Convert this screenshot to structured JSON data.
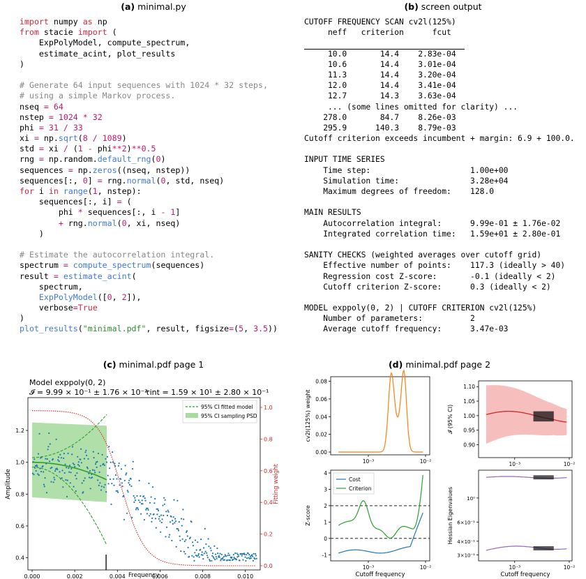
{
  "panel_a": {
    "label": "(a)",
    "title": "minimal.py"
  },
  "panel_b": {
    "label": "(b)",
    "title": "screen output"
  },
  "panel_c": {
    "label": "(c)",
    "title": "minimal.pdf page 1"
  },
  "panel_d": {
    "label": "(d)",
    "title": "minimal.pdf page 2"
  },
  "code_lines": [
    [
      [
        "kw",
        "import"
      ],
      [
        "t",
        " numpy "
      ],
      [
        "kw",
        "as"
      ],
      [
        "t",
        " np"
      ]
    ],
    [
      [
        "kw",
        "from"
      ],
      [
        "t",
        " stacie "
      ],
      [
        "kw",
        "import"
      ],
      [
        "t",
        " ("
      ]
    ],
    [
      [
        "t",
        "    ExpPolyModel, compute_spectrum,"
      ]
    ],
    [
      [
        "t",
        "    estimate_acint, plot_results"
      ]
    ],
    [
      [
        "t",
        ")"
      ]
    ],
    [
      [
        "t",
        ""
      ]
    ],
    [
      [
        "cm",
        "# Generate 64 input sequences with 1024 * 32 steps,"
      ]
    ],
    [
      [
        "cm",
        "# using a simple Markov process."
      ]
    ],
    [
      [
        "t",
        "nseq "
      ],
      [
        "op",
        "="
      ],
      [
        "t",
        " "
      ],
      [
        "num",
        "64"
      ]
    ],
    [
      [
        "t",
        "nstep "
      ],
      [
        "op",
        "="
      ],
      [
        "t",
        " "
      ],
      [
        "num",
        "1024"
      ],
      [
        "t",
        " "
      ],
      [
        "op",
        "*"
      ],
      [
        "t",
        " "
      ],
      [
        "num",
        "32"
      ]
    ],
    [
      [
        "t",
        "phi "
      ],
      [
        "op",
        "="
      ],
      [
        "t",
        " "
      ],
      [
        "num",
        "31"
      ],
      [
        "t",
        " "
      ],
      [
        "op",
        "/"
      ],
      [
        "t",
        " "
      ],
      [
        "num",
        "33"
      ]
    ],
    [
      [
        "t",
        "xi "
      ],
      [
        "op",
        "="
      ],
      [
        "t",
        " np."
      ],
      [
        "fn",
        "sqrt"
      ],
      [
        "t",
        "("
      ],
      [
        "num",
        "8"
      ],
      [
        "t",
        " "
      ],
      [
        "op",
        "/"
      ],
      [
        "t",
        " "
      ],
      [
        "num",
        "1089"
      ],
      [
        "t",
        ")"
      ]
    ],
    [
      [
        "t",
        "std "
      ],
      [
        "op",
        "="
      ],
      [
        "t",
        " xi "
      ],
      [
        "op",
        "/"
      ],
      [
        "t",
        " ("
      ],
      [
        "num",
        "1"
      ],
      [
        "t",
        " "
      ],
      [
        "op",
        "-"
      ],
      [
        "t",
        " phi"
      ],
      [
        "op",
        "**"
      ],
      [
        "num",
        "2"
      ],
      [
        "t",
        ")"
      ],
      [
        "op",
        "**"
      ],
      [
        "num",
        "0.5"
      ]
    ],
    [
      [
        "t",
        "rng "
      ],
      [
        "op",
        "="
      ],
      [
        "t",
        " np.random."
      ],
      [
        "fn",
        "default_rng"
      ],
      [
        "t",
        "("
      ],
      [
        "num",
        "0"
      ],
      [
        "t",
        ")"
      ]
    ],
    [
      [
        "t",
        "sequences "
      ],
      [
        "op",
        "="
      ],
      [
        "t",
        " np."
      ],
      [
        "fn",
        "zeros"
      ],
      [
        "t",
        "((nseq, nstep))"
      ]
    ],
    [
      [
        "t",
        "sequences[:, "
      ],
      [
        "num",
        "0"
      ],
      [
        "t",
        "] "
      ],
      [
        "op",
        "="
      ],
      [
        "t",
        " rng."
      ],
      [
        "fn",
        "normal"
      ],
      [
        "t",
        "("
      ],
      [
        "num",
        "0"
      ],
      [
        "t",
        ", std, nseq)"
      ]
    ],
    [
      [
        "kw",
        "for"
      ],
      [
        "t",
        " i "
      ],
      [
        "kw",
        "in"
      ],
      [
        "t",
        " "
      ],
      [
        "fn",
        "range"
      ],
      [
        "t",
        "("
      ],
      [
        "num",
        "1"
      ],
      [
        "t",
        ", nstep):"
      ]
    ],
    [
      [
        "t",
        "    sequences[:, i] "
      ],
      [
        "op",
        "="
      ],
      [
        "t",
        " ("
      ]
    ],
    [
      [
        "t",
        "        phi "
      ],
      [
        "op",
        "*"
      ],
      [
        "t",
        " sequences[:, i "
      ],
      [
        "op",
        "-"
      ],
      [
        "t",
        " "
      ],
      [
        "num",
        "1"
      ],
      [
        "t",
        "]"
      ]
    ],
    [
      [
        "t",
        "        "
      ],
      [
        "op",
        "+"
      ],
      [
        "t",
        " rng."
      ],
      [
        "fn",
        "normal"
      ],
      [
        "t",
        "("
      ],
      [
        "num",
        "0"
      ],
      [
        "t",
        ", xi, nseq)"
      ]
    ],
    [
      [
        "t",
        "    )"
      ]
    ],
    [
      [
        "t",
        ""
      ]
    ],
    [
      [
        "cm",
        "# Estimate the autocorrelation integral."
      ]
    ],
    [
      [
        "t",
        "spectrum "
      ],
      [
        "op",
        "="
      ],
      [
        "t",
        " "
      ],
      [
        "fn",
        "compute_spectrum"
      ],
      [
        "t",
        "(sequences)"
      ]
    ],
    [
      [
        "t",
        "result "
      ],
      [
        "op",
        "="
      ],
      [
        "t",
        " "
      ],
      [
        "fn",
        "estimate_acint"
      ],
      [
        "t",
        "("
      ]
    ],
    [
      [
        "t",
        "    spectrum,"
      ]
    ],
    [
      [
        "t",
        "    "
      ],
      [
        "fn",
        "ExpPolyModel"
      ],
      [
        "t",
        "(["
      ],
      [
        "num",
        "0"
      ],
      [
        "t",
        ", "
      ],
      [
        "num",
        "2"
      ],
      [
        "t",
        "]),"
      ]
    ],
    [
      [
        "t",
        "    verbose"
      ],
      [
        "op",
        "="
      ],
      [
        "kw",
        "True"
      ]
    ],
    [
      [
        "t",
        ")"
      ]
    ],
    [
      [
        "fn",
        "plot_results"
      ],
      [
        "t",
        "("
      ],
      [
        "str",
        "\"minimal.pdf\""
      ],
      [
        "t",
        ", result, figsize"
      ],
      [
        "op",
        "="
      ],
      [
        "t",
        "("
      ],
      [
        "num",
        "5"
      ],
      [
        "t",
        ", "
      ],
      [
        "num",
        "3.5"
      ],
      [
        "t",
        "))"
      ]
    ]
  ],
  "output_lines": [
    "CUTOFF FREQUENCY SCAN cv2l(125%)",
    "     neff   criterion      fcut",
    "---------  ----------  ----------",
    "     10.0       14.4    2.83e-04",
    "     10.6       14.4    3.01e-04",
    "     11.3       14.4    3.20e-04",
    "     12.0       14.4    3.41e-04",
    "     12.7       14.3    3.63e-04",
    "     ... (some lines omitted for clarity) ...",
    "    278.0       84.7    8.26e-03",
    "    295.9      140.3    8.79e-03",
    "Cutoff criterion exceeds incumbent + margin: 6.9 + 100.0.",
    "",
    "INPUT TIME SERIES",
    "    Time step:                     1.00e+00",
    "    Simulation time:               3.28e+04",
    "    Maximum degrees of freedom:    128.0",
    "",
    "MAIN RESULTS",
    "    Autocorrelation integral:      9.99e-01 ± 1.76e-02",
    "    Integrated correlation time:   1.59e+01 ± 2.80e-01",
    "",
    "SANITY CHECKS (weighted averages over cutoff grid)",
    "    Effective number of points:    117.3 (ideally > 40)",
    "    Regression cost Z-score:       -0.1 (ideally < 2)",
    "    Cutoff criterion Z-score:      0.3 (ideally < 2)",
    "",
    "MODEL exppoly(0, 2) | CUTOFF CRITERION cv2l(125%)",
    "    Number of parameters:          2",
    "    Average cutoff frequency:      3.47e-03"
  ],
  "fig_c": {
    "model_label": "Model exppoly(0, 2)",
    "acint_label": "𝓘 = 9.99 × 10⁻¹ ± 1.76 × 10⁻²",
    "tau_label": "τint = 1.59 × 10¹ ± 2.80 × 10⁻¹",
    "legend_fit": "95% CI fitted model",
    "legend_psd": "95% CI sampling PSD",
    "xlabel": "Frequency",
    "ylabel": "Amplitude",
    "y2label": "Fitting weight",
    "xticks": [
      "0.000",
      "0.002",
      "0.004",
      "0.006",
      "0.008",
      "0.010"
    ],
    "yticks": [
      "0.4",
      "0.6",
      "0.8",
      "1.0",
      "1.2"
    ],
    "y2ticks": [
      "0.0",
      "0.2",
      "0.4",
      "0.6",
      "0.8",
      "1.0"
    ],
    "colors": {
      "points": "#1f77b4",
      "fit": "#2ca02c",
      "band": "#a9dba0",
      "weight": "#d62728"
    }
  },
  "fig_d": {
    "tl_ylabel": "cv2l(125%) weight",
    "tl_yticks": [
      "0.00",
      "0.02",
      "0.04",
      "0.06",
      "0.08"
    ],
    "tr_ylabel": "𝓘 (95% CI)",
    "tr_yticks": [
      "0.90",
      "0.95",
      "1.00",
      "1.05",
      "1.10"
    ],
    "bl_ylabel": "Z-score",
    "bl_yticks": [
      "-1",
      "0",
      "1",
      "2",
      "3",
      "4"
    ],
    "br_ylabel": "Hessian Eigenvalues",
    "br_yticks": [
      "3×10⁻¹",
      "4×10⁻¹",
      "6×10⁻¹",
      "10⁰"
    ],
    "xlabel": "Cutoff frequency",
    "xticks": [
      "10⁻³",
      "10⁻²"
    ],
    "legend_cost": "Cost",
    "legend_criterion": "Criterion",
    "colors": {
      "weight": "#ff7f0e",
      "acint": "#d62728",
      "cost": "#1f77b4",
      "criterion": "#2ca02c",
      "eig": "#9467bd"
    }
  }
}
